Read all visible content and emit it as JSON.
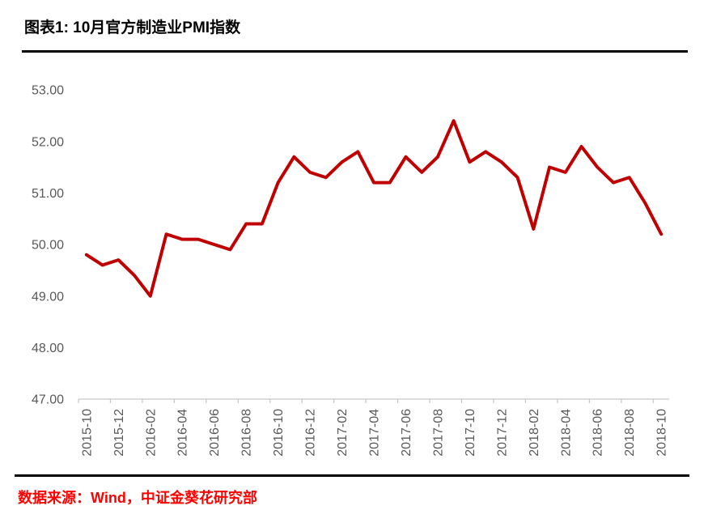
{
  "header": {
    "title": "图表1: 10月官方制造业PMI指数"
  },
  "footer": {
    "source_label": "数据来源：Wind，中证金葵花研究部"
  },
  "colors": {
    "line": "#C00000",
    "axis": "#C6C6C6",
    "tick_text": "#595959",
    "title_text": "#000000",
    "source_text": "#FF0000",
    "rule": "#000000"
  },
  "chart_data": {
    "type": "line",
    "title": "图表1: 10月官方制造业PMI指数",
    "xlabel": "",
    "ylabel": "",
    "ylim": [
      47,
      53
    ],
    "yticks": [
      47,
      48,
      49,
      50,
      51,
      52,
      53
    ],
    "ytick_labels": [
      "47.00",
      "48.00",
      "49.00",
      "50.00",
      "51.00",
      "52.00",
      "53.00"
    ],
    "grid": false,
    "legend": "none",
    "xtick_every": 2,
    "x": [
      "2015-10",
      "2015-11",
      "2015-12",
      "2016-01",
      "2016-02",
      "2016-03",
      "2016-04",
      "2016-05",
      "2016-06",
      "2016-07",
      "2016-08",
      "2016-09",
      "2016-10",
      "2016-11",
      "2016-12",
      "2017-01",
      "2017-02",
      "2017-03",
      "2017-04",
      "2017-05",
      "2017-06",
      "2017-07",
      "2017-08",
      "2017-09",
      "2017-10",
      "2017-11",
      "2017-12",
      "2018-01",
      "2018-02",
      "2018-03",
      "2018-04",
      "2018-05",
      "2018-06",
      "2018-07",
      "2018-08",
      "2018-09",
      "2018-10"
    ],
    "series": [
      {
        "name": "官方制造业PMI",
        "color": "#C00000",
        "values": [
          49.8,
          49.6,
          49.7,
          49.4,
          49.0,
          50.2,
          50.1,
          50.1,
          50.0,
          49.9,
          50.4,
          50.4,
          51.2,
          51.7,
          51.4,
          51.3,
          51.6,
          51.8,
          51.2,
          51.2,
          51.7,
          51.4,
          51.7,
          52.4,
          51.6,
          51.8,
          51.6,
          51.3,
          50.3,
          51.5,
          51.4,
          51.9,
          51.5,
          51.2,
          51.3,
          50.8,
          50.2
        ]
      }
    ]
  }
}
